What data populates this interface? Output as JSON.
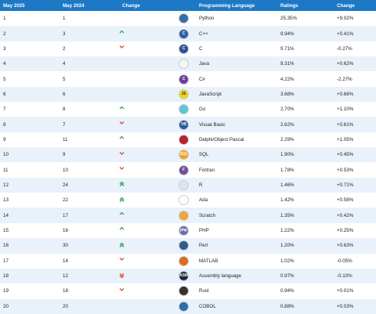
{
  "header": {
    "col1": "May 2025",
    "col2": "May 2024",
    "col3": "Change",
    "col4": "Programming Language",
    "col5": "Ratings",
    "col6": "Change"
  },
  "colors": {
    "header_bg": "#1d78c5",
    "row_alt": "#e9f2fb",
    "up": "#2ea84f",
    "down": "#e04b2a"
  },
  "rows": [
    {
      "r2025": "1",
      "r2024": "1",
      "trend": "none",
      "lang": "Python",
      "rating": "25.35%",
      "change": "+9.02%",
      "icon": "python-icon",
      "logo_bg": "#3a6ea5",
      "logo_text": ""
    },
    {
      "r2025": "2",
      "r2024": "3",
      "trend": "up",
      "lang": "C++",
      "rating": "9.94%",
      "change": "+0.41%",
      "icon": "cpp-icon",
      "logo_bg": "#2c5fa8",
      "logo_text": "C"
    },
    {
      "r2025": "3",
      "r2024": "2",
      "trend": "down",
      "lang": "C",
      "rating": "9.71%",
      "change": "-0.27%",
      "icon": "c-icon",
      "logo_bg": "#2d4e9c",
      "logo_text": "C"
    },
    {
      "r2025": "4",
      "r2024": "4",
      "trend": "none",
      "lang": "Java",
      "rating": "9.31%",
      "change": "+0.62%",
      "icon": "java-icon",
      "logo_bg": "#f4f4f4",
      "logo_text": ""
    },
    {
      "r2025": "5",
      "r2024": "5",
      "trend": "none",
      "lang": "C#",
      "rating": "4.22%",
      "change": "-2.27%",
      "icon": "csharp-icon",
      "logo_bg": "#6a3fa0",
      "logo_text": "C"
    },
    {
      "r2025": "6",
      "r2024": "6",
      "trend": "none",
      "lang": "JavaScript",
      "rating": "3.68%",
      "change": "+0.66%",
      "icon": "javascript-icon",
      "logo_bg": "#f0d81a",
      "logo_text": "JS"
    },
    {
      "r2025": "7",
      "r2024": "8",
      "trend": "up",
      "lang": "Go",
      "rating": "2.70%",
      "change": "+1.10%",
      "icon": "go-icon",
      "logo_bg": "#5ec6d8",
      "logo_text": ""
    },
    {
      "r2025": "8",
      "r2024": "7",
      "trend": "down",
      "lang": "Visual Basic",
      "rating": "2.62%",
      "change": "+0.61%",
      "icon": "visual-basic-icon",
      "logo_bg": "#2a5a9a",
      "logo_text": "VB"
    },
    {
      "r2025": "9",
      "r2024": "11",
      "trend": "up",
      "lang": "Delphi/Object Pascal",
      "rating": "2.29%",
      "change": "+1.05%",
      "icon": "delphi-icon",
      "logo_bg": "#b8222a",
      "logo_text": ""
    },
    {
      "r2025": "10",
      "r2024": "9",
      "trend": "down",
      "lang": "SQL",
      "rating": "1.90%",
      "change": "+0.45%",
      "icon": "sql-icon",
      "logo_bg": "#f3a21b",
      "logo_text": "SQL"
    },
    {
      "r2025": "11",
      "r2024": "10",
      "trend": "down",
      "lang": "Fortran",
      "rating": "1.78%",
      "change": "+0.53%",
      "icon": "fortran-icon",
      "logo_bg": "#764c9c",
      "logo_text": "F"
    },
    {
      "r2025": "12",
      "r2024": "24",
      "trend": "upup",
      "lang": "R",
      "rating": "1.46%",
      "change": "+0.71%",
      "icon": "r-icon",
      "logo_bg": "#dfe4ec",
      "logo_text": ""
    },
    {
      "r2025": "13",
      "r2024": "22",
      "trend": "upup",
      "lang": "Ada",
      "rating": "1.42%",
      "change": "+0.58%",
      "icon": "ada-icon",
      "logo_bg": "#ffffff",
      "logo_text": ""
    },
    {
      "r2025": "14",
      "r2024": "17",
      "trend": "up",
      "lang": "Scratch",
      "rating": "1.35%",
      "change": "+0.42%",
      "icon": "scratch-icon",
      "logo_bg": "#f2a53b",
      "logo_text": ""
    },
    {
      "r2025": "15",
      "r2024": "16",
      "trend": "up",
      "lang": "PHP",
      "rating": "1.22%",
      "change": "+0.25%",
      "icon": "php-icon",
      "logo_bg": "#6c6fae",
      "logo_text": "php"
    },
    {
      "r2025": "16",
      "r2024": "30",
      "trend": "upup",
      "lang": "Perl",
      "rating": "1.20%",
      "change": "+0.63%",
      "icon": "perl-icon",
      "logo_bg": "#2f5e8e",
      "logo_text": ""
    },
    {
      "r2025": "17",
      "r2024": "14",
      "trend": "down",
      "lang": "MATLAB",
      "rating": "1.02%",
      "change": "-0.05%",
      "icon": "matlab-icon",
      "logo_bg": "#e06a1e",
      "logo_text": ""
    },
    {
      "r2025": "18",
      "r2024": "12",
      "trend": "downdown",
      "lang": "Assembly language",
      "rating": "0.97%",
      "change": "-0.10%",
      "icon": "assembly-icon",
      "logo_bg": "#1c2740",
      "logo_text": "ASM"
    },
    {
      "r2025": "19",
      "r2024": "18",
      "trend": "down",
      "lang": "Rust",
      "rating": "0.94%",
      "change": "+0.01%",
      "icon": "rust-icon",
      "logo_bg": "#333333",
      "logo_text": ""
    },
    {
      "r2025": "20",
      "r2024": "20",
      "trend": "none",
      "lang": "COBOL",
      "rating": "0.88%",
      "change": "+0.03%",
      "icon": "cobol-icon",
      "logo_bg": "#2b6ea8",
      "logo_text": ""
    }
  ]
}
